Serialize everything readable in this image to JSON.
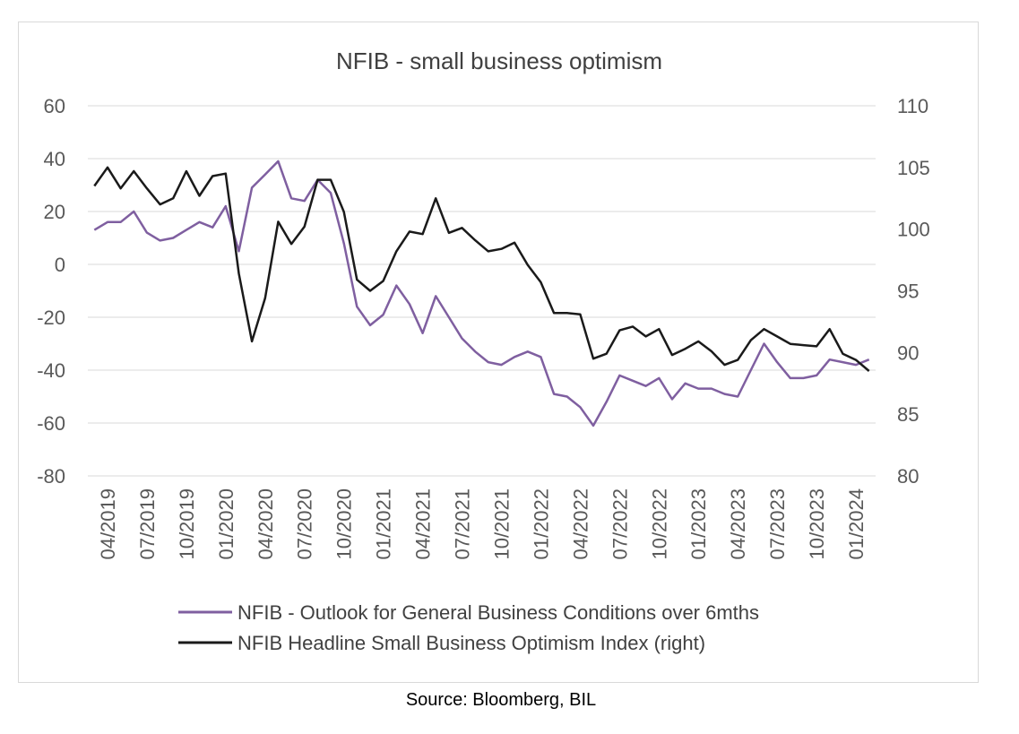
{
  "chart_data": {
    "type": "line",
    "title": "NFIB - small business optimism",
    "x_tick_labels": [
      "04/2019",
      "07/2019",
      "10/2019",
      "01/2020",
      "04/2020",
      "07/2020",
      "10/2020",
      "01/2021",
      "04/2021",
      "07/2021",
      "10/2021",
      "01/2022",
      "04/2022",
      "07/2022",
      "10/2022",
      "01/2023",
      "04/2023",
      "07/2023",
      "10/2023",
      "01/2024"
    ],
    "x_start": "03/2019",
    "y_left": {
      "min": -80,
      "max": 60,
      "step": 20,
      "ticks": [
        "60",
        "40",
        "20",
        "0",
        "-20",
        "-40",
        "-60",
        "-80"
      ]
    },
    "y_right": {
      "min": 80,
      "max": 110,
      "step": 5,
      "ticks": [
        "110",
        "105",
        "100",
        "95",
        "90",
        "85",
        "80"
      ]
    },
    "grid": true,
    "legend_position": "bottom",
    "series": [
      {
        "name": "NFIB - Outlook for General Business Conditions over 6mths",
        "axis": "left",
        "color": "#7f5fa0",
        "values": [
          13,
          16,
          16,
          20,
          12,
          9,
          10,
          13,
          16,
          14,
          22,
          5,
          29,
          34,
          39,
          25,
          24,
          32,
          27,
          8,
          -16,
          -23,
          -19,
          -8,
          -15,
          -26,
          -12,
          -20,
          -28,
          -33,
          -37,
          -38,
          -35,
          -33,
          -35,
          -49,
          -50,
          -54,
          -61,
          -52,
          -42,
          -44,
          -46,
          -43,
          -51,
          -45,
          -47,
          -47,
          -49,
          -50,
          -40,
          -30,
          -37,
          -43,
          -43,
          -42,
          -36,
          -37,
          -38,
          -36
        ]
      },
      {
        "name": "NFIB Headline Small Business Optimism Index (right)",
        "axis": "right",
        "color": "#1a1a1a",
        "values": [
          103.5,
          105,
          103.3,
          104.7,
          103.3,
          102,
          102.5,
          104.7,
          102.7,
          104.3,
          104.5,
          96.4,
          90.9,
          94.4,
          100.6,
          98.8,
          100.2,
          104,
          104,
          101.4,
          95.9,
          95,
          95.8,
          98.2,
          99.8,
          99.6,
          102.5,
          99.7,
          100.1,
          99.1,
          98.2,
          98.4,
          98.9,
          97.1,
          95.7,
          93.2,
          93.2,
          93.1,
          89.5,
          89.9,
          91.8,
          92.1,
          91.3,
          91.9,
          89.8,
          90.3,
          90.9,
          90.1,
          89.0,
          89.4,
          91.0,
          91.9,
          91.3,
          90.7,
          90.6,
          90.5,
          91.9,
          89.9,
          89.4,
          88.5
        ]
      }
    ]
  },
  "source": "Source: Bloomberg, BIL"
}
